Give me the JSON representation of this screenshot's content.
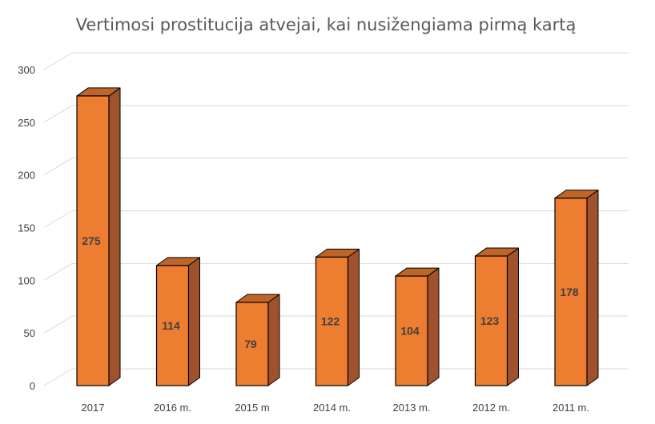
{
  "chart_data": {
    "type": "bar",
    "title": "Vertimosi prostitucija atvejai, kai nusižengiama pirmą kartą",
    "categories": [
      "2017",
      "2016 m.",
      "2015 m",
      "2014 m.",
      "2013 m.",
      "2012 m.",
      "2011 m."
    ],
    "values": [
      275,
      114,
      79,
      122,
      104,
      123,
      178
    ],
    "yticks": [
      "0",
      "50",
      "100",
      "150",
      "200",
      "250",
      "300"
    ],
    "ylim": [
      0,
      300
    ],
    "grid": true,
    "style": "3d-column",
    "colors": {
      "front": "#ED7D31",
      "side": "#A0522D",
      "top": "#C0652A",
      "stroke": "#000000"
    }
  }
}
